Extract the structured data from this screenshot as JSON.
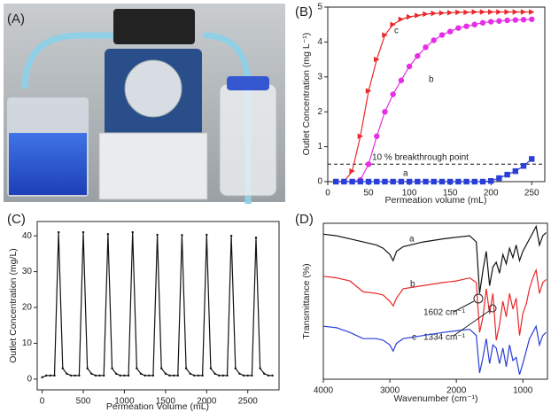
{
  "photo": {
    "label": "(A)"
  },
  "chart_data": [
    {
      "type": "line",
      "label": "(B)",
      "xlabel": "Permeation volume (mL)",
      "ylabel": "Outlet Concentration (mg L⁻¹)",
      "xlim": [
        0,
        266
      ],
      "ylim": [
        0,
        5
      ],
      "xticks": [
        0,
        50,
        100,
        150,
        200,
        250
      ],
      "yticks": [
        0,
        1,
        2,
        3,
        4,
        5
      ],
      "threshold": 0.5,
      "annotation": "10 % breakthrough point",
      "x": [
        10,
        20,
        30,
        40,
        50,
        60,
        70,
        80,
        90,
        100,
        110,
        120,
        130,
        140,
        150,
        160,
        170,
        180,
        190,
        200,
        210,
        220,
        230,
        240,
        250
      ],
      "series": [
        {
          "name": "c",
          "color": "#e8282b",
          "marker": "triangle",
          "values": [
            0,
            0,
            0.3,
            1.3,
            2.6,
            3.5,
            4.2,
            4.5,
            4.65,
            4.72,
            4.76,
            4.8,
            4.82,
            4.83,
            4.84,
            4.85,
            4.85,
            4.86,
            4.86,
            4.86,
            4.86,
            4.86,
            4.86,
            4.86,
            4.86
          ]
        },
        {
          "name": "b",
          "color": "#e62ee6",
          "marker": "circle",
          "values": [
            0,
            0,
            0,
            0.05,
            0.5,
            1.3,
            2.0,
            2.5,
            2.9,
            3.3,
            3.6,
            3.85,
            4.05,
            4.2,
            4.3,
            4.4,
            4.45,
            4.5,
            4.55,
            4.58,
            4.6,
            4.62,
            4.63,
            4.64,
            4.65
          ]
        },
        {
          "name": "a",
          "color": "#2a3fd6",
          "marker": "square",
          "values": [
            0,
            0,
            0,
            0,
            0,
            0,
            0,
            0,
            0,
            0,
            0,
            0,
            0,
            0,
            0,
            0,
            0,
            0,
            0,
            0.02,
            0.1,
            0.2,
            0.3,
            0.45,
            0.65
          ]
        }
      ]
    },
    {
      "type": "line",
      "label": "(C)",
      "xlabel": "Permeation Volume (mL)",
      "ylabel": "Outlet Concentration (mg/L)",
      "xlim": [
        -60,
        2880
      ],
      "ylim": [
        -3,
        44
      ],
      "xticks": [
        0,
        500,
        1000,
        1500,
        2000,
        2500
      ],
      "yticks": [
        0,
        10,
        20,
        30,
        40
      ],
      "x": [
        0,
        50,
        100,
        150,
        200,
        250,
        300,
        350,
        400,
        450,
        500,
        550,
        600,
        650,
        700,
        750,
        800,
        850,
        900,
        950,
        1000,
        1050,
        1100,
        1150,
        1200,
        1250,
        1300,
        1350,
        1400,
        1450,
        1500,
        1550,
        1600,
        1650,
        1700,
        1750,
        1800,
        1850,
        1900,
        1950,
        2000,
        2050,
        2100,
        2150,
        2200,
        2250,
        2300,
        2350,
        2400,
        2450,
        2500,
        2550,
        2600,
        2650,
        2700,
        2750,
        2800
      ],
      "series": [
        {
          "color": "#111111",
          "marker": "dot",
          "values": [
            0.5,
            1,
            1,
            1,
            41,
            3,
            1.5,
            1,
            1,
            1,
            41,
            3,
            1.5,
            1,
            1,
            1,
            40.5,
            3,
            1.5,
            1,
            1,
            1,
            41,
            3,
            1.5,
            1,
            1,
            1,
            40.3,
            3,
            1.5,
            1,
            1,
            1,
            40.2,
            3,
            1.5,
            1,
            1,
            1,
            40.3,
            3,
            1.5,
            1,
            1,
            1,
            40,
            3,
            1.5,
            1,
            1,
            1,
            39.5,
            3,
            1.5,
            1,
            1
          ]
        }
      ]
    },
    {
      "type": "line",
      "label": "(D)",
      "xlabel": "Wavenumber (cm⁻¹)",
      "ylabel": "Transmittance (%)",
      "xlim": [
        4000,
        630
      ],
      "ylim": [
        0,
        100
      ],
      "xticks": [
        4000,
        3000,
        2000,
        1000
      ],
      "annotations": [
        "1602 cm⁻¹",
        "1334 cm⁻¹"
      ],
      "x": [
        4000,
        3800,
        3600,
        3400,
        3200,
        3100,
        3000,
        2950,
        2900,
        2800,
        2500,
        2200,
        2000,
        1800,
        1700,
        1650,
        1600,
        1550,
        1500,
        1450,
        1400,
        1350,
        1300,
        1250,
        1200,
        1150,
        1100,
        1050,
        1000,
        950,
        900,
        850,
        800,
        750,
        700,
        650
      ],
      "series": [
        {
          "name": "a",
          "color": "#111111",
          "values": [
            93,
            92,
            90,
            88,
            86,
            84,
            80,
            76,
            82,
            85,
            88,
            90,
            91,
            92,
            88,
            55,
            70,
            82,
            60,
            72,
            75,
            68,
            80,
            74,
            84,
            78,
            86,
            76,
            82,
            86,
            90,
            94,
            98,
            86,
            92,
            94
          ]
        },
        {
          "name": "b",
          "color": "#e8282b",
          "values": [
            66,
            65,
            63,
            56,
            55,
            54,
            50,
            47,
            52,
            58,
            60,
            62,
            63,
            65,
            62,
            30,
            40,
            58,
            42,
            55,
            25,
            35,
            50,
            40,
            55,
            45,
            52,
            28,
            42,
            48,
            58,
            65,
            70,
            55,
            62,
            64
          ]
        },
        {
          "name": "c",
          "color": "#2a3fd6",
          "values": [
            34,
            33,
            30,
            26,
            26,
            25,
            22,
            18,
            23,
            26,
            28,
            30,
            31,
            32,
            28,
            4,
            14,
            26,
            10,
            22,
            20,
            10,
            20,
            8,
            22,
            12,
            14,
            3,
            10,
            18,
            26,
            30,
            34,
            22,
            28,
            30
          ]
        }
      ]
    }
  ]
}
